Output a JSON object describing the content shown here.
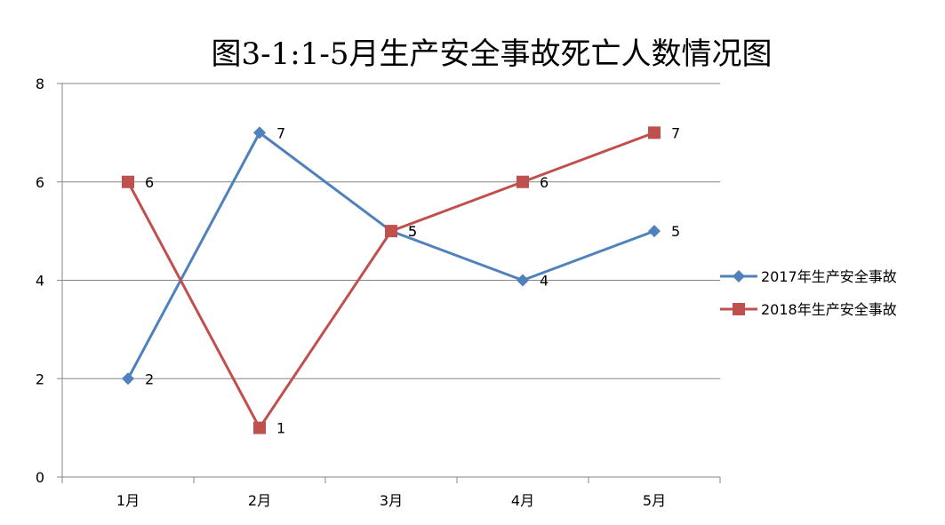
{
  "chart_data": {
    "type": "line",
    "title": "图3-1:1-5月生产安全事故死亡人数情况图",
    "categories": [
      "1月",
      "2月",
      "3月",
      "4月",
      "5月"
    ],
    "ylim": [
      0,
      8
    ],
    "yticks": [
      0,
      2,
      4,
      6,
      8
    ],
    "grid": true,
    "legend_position": "right",
    "series": [
      {
        "name": "2017年生产安全事故",
        "values": [
          2,
          7,
          5,
          4,
          5
        ],
        "color": "#4F81BD",
        "marker": "diamond"
      },
      {
        "name": "2018年生产安全事故",
        "values": [
          6,
          1,
          5,
          6,
          7
        ],
        "color": "#C0504D",
        "marker": "square"
      }
    ]
  }
}
